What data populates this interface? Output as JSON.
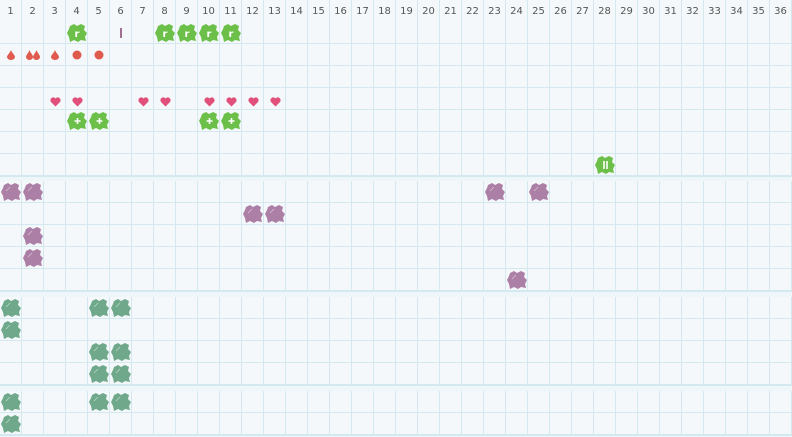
{
  "columns": [
    "1",
    "2",
    "3",
    "4",
    "5",
    "6",
    "7",
    "8",
    "9",
    "10",
    "11",
    "12",
    "13",
    "14",
    "15",
    "16",
    "17",
    "18",
    "19",
    "20",
    "21",
    "22",
    "23",
    "24",
    "25",
    "26",
    "27",
    "28",
    "29",
    "30",
    "31",
    "32",
    "33",
    "34",
    "35",
    "36"
  ],
  "colors": {
    "green": "#6cc04a",
    "purple": "#ac7fa6",
    "teal": "#6fa88a",
    "red": "#e05a4e",
    "pink": "#e0507a",
    "tick": "#a07090"
  },
  "sections": [
    {
      "rows": 7,
      "items": [
        {
          "r": 1,
          "c": 4,
          "t": "green-r"
        },
        {
          "r": 1,
          "c": 6,
          "t": "tick"
        },
        {
          "r": 1,
          "c": 8,
          "t": "green-r"
        },
        {
          "r": 1,
          "c": 9,
          "t": "green-r"
        },
        {
          "r": 1,
          "c": 10,
          "t": "green-r"
        },
        {
          "r": 1,
          "c": 11,
          "t": "green-r"
        },
        {
          "r": 2,
          "c": 1,
          "t": "drop"
        },
        {
          "r": 2,
          "c": 2,
          "t": "drop2"
        },
        {
          "r": 2,
          "c": 3,
          "t": "drop"
        },
        {
          "r": 2,
          "c": 4,
          "t": "dot"
        },
        {
          "r": 2,
          "c": 5,
          "t": "dot"
        },
        {
          "r": 4,
          "c": 3,
          "t": "heart"
        },
        {
          "r": 4,
          "c": 4,
          "t": "heart"
        },
        {
          "r": 4,
          "c": 7,
          "t": "heart"
        },
        {
          "r": 4,
          "c": 8,
          "t": "heart"
        },
        {
          "r": 4,
          "c": 10,
          "t": "heart"
        },
        {
          "r": 4,
          "c": 11,
          "t": "heart"
        },
        {
          "r": 4,
          "c": 12,
          "t": "heart"
        },
        {
          "r": 4,
          "c": 13,
          "t": "heart"
        },
        {
          "r": 5,
          "c": 4,
          "t": "green-plus"
        },
        {
          "r": 5,
          "c": 5,
          "t": "green-plus"
        },
        {
          "r": 5,
          "c": 10,
          "t": "green-plus"
        },
        {
          "r": 5,
          "c": 11,
          "t": "green-plus"
        },
        {
          "r": 7,
          "c": 28,
          "t": "green-pause"
        }
      ]
    },
    {
      "rows": 5,
      "items": [
        {
          "r": 1,
          "c": 1,
          "t": "purple"
        },
        {
          "r": 1,
          "c": 2,
          "t": "purple"
        },
        {
          "r": 1,
          "c": 23,
          "t": "purple"
        },
        {
          "r": 1,
          "c": 25,
          "t": "purple"
        },
        {
          "r": 2,
          "c": 12,
          "t": "purple"
        },
        {
          "r": 2,
          "c": 13,
          "t": "purple"
        },
        {
          "r": 3,
          "c": 2,
          "t": "purple"
        },
        {
          "r": 4,
          "c": 2,
          "t": "purple"
        },
        {
          "r": 5,
          "c": 24,
          "t": "purple"
        }
      ]
    },
    {
      "rows": 4,
      "items": [
        {
          "r": 1,
          "c": 1,
          "t": "teal"
        },
        {
          "r": 1,
          "c": 5,
          "t": "teal"
        },
        {
          "r": 1,
          "c": 6,
          "t": "teal"
        },
        {
          "r": 2,
          "c": 1,
          "t": "teal"
        },
        {
          "r": 3,
          "c": 5,
          "t": "teal"
        },
        {
          "r": 3,
          "c": 6,
          "t": "teal"
        },
        {
          "r": 4,
          "c": 5,
          "t": "teal"
        },
        {
          "r": 4,
          "c": 6,
          "t": "teal"
        }
      ]
    },
    {
      "rows": 2,
      "items": [
        {
          "r": 1,
          "c": 1,
          "t": "teal"
        },
        {
          "r": 1,
          "c": 5,
          "t": "teal"
        },
        {
          "r": 1,
          "c": 6,
          "t": "teal"
        },
        {
          "r": 2,
          "c": 1,
          "t": "teal"
        }
      ]
    }
  ]
}
